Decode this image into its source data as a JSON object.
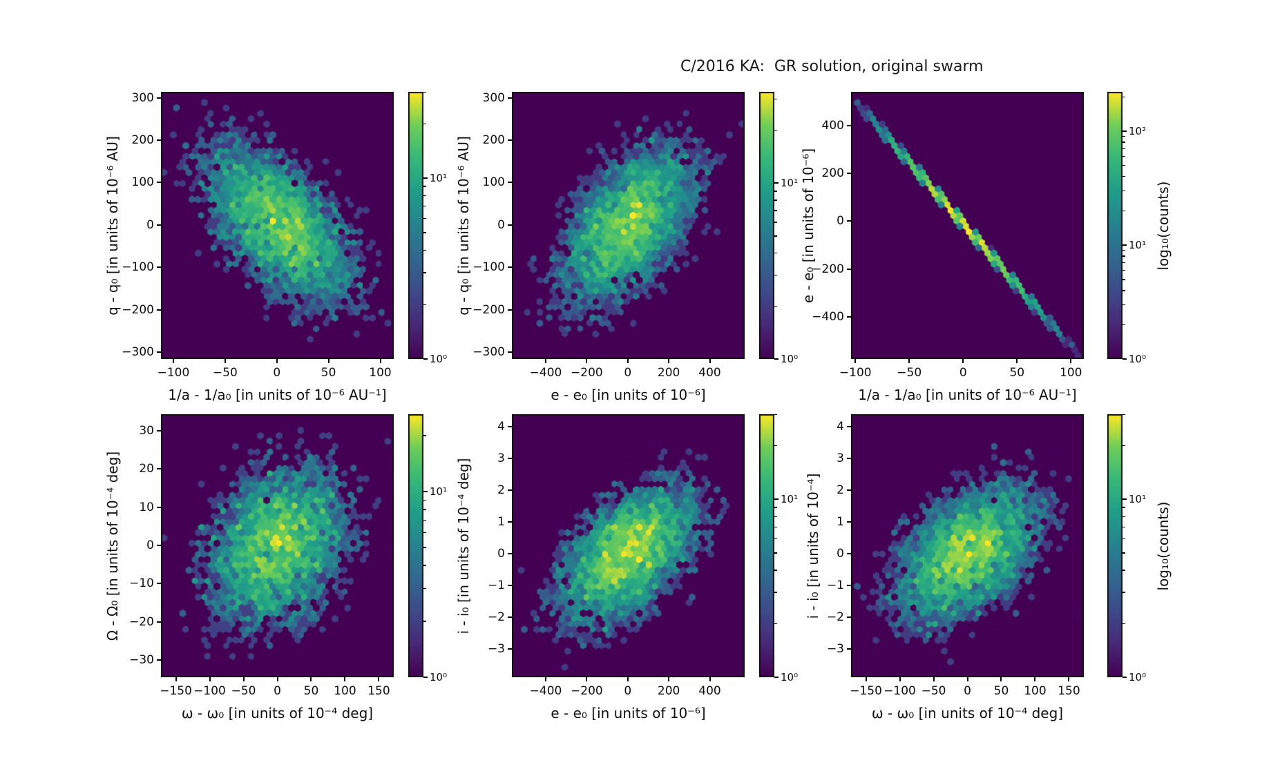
{
  "figure": {
    "title": "C/2016 KA:  GR solution, original swarm",
    "colormap": "viridis",
    "background_color": "#ffffff",
    "hex_zero_color": "#440154",
    "colorbar_label": "log₁₀(counts)"
  },
  "chart_data": {
    "type": "hexbin",
    "rows": 2,
    "cols": 3,
    "panels": [
      {
        "name": "q-vs-1a",
        "xlabel": "1/a - 1/a₀ [in units of 10⁻⁶ AU⁻¹]",
        "ylabel": "q - q₀ [in units of 10⁻⁶ AU]",
        "xlim": [
          -112,
          113
        ],
        "ylim": [
          -316,
          314
        ],
        "xticks": [
          -100,
          -50,
          0,
          50,
          100
        ],
        "yticks": [
          300,
          200,
          100,
          0,
          -100,
          -200,
          -300
        ],
        "colorbar_ticks": [
          {
            "value": 10,
            "label": "10¹"
          },
          {
            "value": 1,
            "label": "10⁰"
          }
        ],
        "distribution": {
          "kind": "gaussian",
          "n_points": 5000,
          "x_mean": 3,
          "y_mean": 0,
          "x_sigma": 38,
          "y_sigma": 100,
          "correlation": -0.56,
          "seed": 101
        }
      },
      {
        "name": "q-vs-e",
        "xlabel": "e - e₀ [in units of 10⁻⁶]",
        "ylabel": "q - q₀ [in units of 10⁻⁶ AU]",
        "xlim": [
          -565,
          570
        ],
        "ylim": [
          -316,
          314
        ],
        "xticks": [
          -400,
          -200,
          0,
          200,
          400
        ],
        "yticks": [
          300,
          200,
          100,
          0,
          -100,
          -200,
          -300
        ],
        "colorbar_ticks": [
          {
            "value": 10,
            "label": "10¹"
          },
          {
            "value": 1,
            "label": "10⁰"
          }
        ],
        "distribution": {
          "kind": "gaussian",
          "n_points": 5000,
          "x_mean": 0,
          "y_mean": 0,
          "x_sigma": 175,
          "y_sigma": 100,
          "correlation": 0.55,
          "seed": 202
        }
      },
      {
        "name": "e-vs-1a",
        "xlabel": "1/a - 1/a₀ [in units of 10⁻⁶ AU⁻¹]",
        "ylabel": "e - e₀ [in units of 10⁻⁶]",
        "xlim": [
          -104,
          112
        ],
        "ylim": [
          -575,
          540
        ],
        "xticks": [
          -100,
          -50,
          0,
          50,
          100
        ],
        "yticks": [
          400,
          200,
          0,
          -200,
          -400
        ],
        "colorbar_ticks": [
          {
            "value": 100,
            "label": "10²"
          },
          {
            "value": 10,
            "label": "10¹"
          },
          {
            "value": 1,
            "label": "10⁰"
          }
        ],
        "distribution": {
          "kind": "linear",
          "n_points": 5000,
          "x_mean": 0,
          "x_sigma": 36,
          "slope": -5.15,
          "intercept": -10,
          "noise_sigma": 6,
          "seed": 303
        }
      },
      {
        "name": "Omega-vs-omega",
        "xlabel": "ω - ω₀ [in units of 10⁻⁴ deg]",
        "ylabel": "Ω - Ω₀ [in units of 10⁻⁴ deg]",
        "xlim": [
          -172,
          172
        ],
        "ylim": [
          -34.5,
          34.3
        ],
        "xticks": [
          -150,
          -100,
          -50,
          0,
          50,
          100,
          150
        ],
        "yticks": [
          30,
          20,
          10,
          0,
          -10,
          -20,
          -30
        ],
        "colorbar_ticks": [
          {
            "value": 10,
            "label": "10¹"
          },
          {
            "value": 1,
            "label": "10⁰"
          }
        ],
        "distribution": {
          "kind": "gaussian",
          "n_points": 5000,
          "x_mean": 0,
          "y_mean": 0,
          "x_sigma": 56,
          "y_sigma": 11.3,
          "correlation": 0.28,
          "seed": 404
        }
      },
      {
        "name": "i-vs-e",
        "xlabel": "e - e₀ [in units of 10⁻⁶]",
        "ylabel": "i - i₀ [in units of 10⁻⁴ deg]",
        "xlim": [
          -565,
          570
        ],
        "ylim": [
          -3.9,
          4.4
        ],
        "xticks": [
          -400,
          -200,
          0,
          200,
          400
        ],
        "yticks": [
          4,
          3,
          2,
          1,
          0,
          -1,
          -2,
          -3
        ],
        "colorbar_ticks": [
          {
            "value": 10,
            "label": "10¹"
          },
          {
            "value": 1,
            "label": "10⁰"
          }
        ],
        "distribution": {
          "kind": "gaussian",
          "n_points": 5000,
          "x_mean": 0,
          "y_mean": 0,
          "x_sigma": 175,
          "y_sigma": 1.15,
          "correlation": 0.5,
          "seed": 505
        }
      },
      {
        "name": "i-vs-omega",
        "xlabel": "ω - ω₀ [in units of 10⁻⁴ deg]",
        "ylabel": "i - i₀ [in units of 10⁻⁴]",
        "xlim": [
          -172,
          172
        ],
        "ylim": [
          -3.9,
          4.4
        ],
        "xticks": [
          -150,
          -100,
          -50,
          0,
          50,
          100,
          150
        ],
        "yticks": [
          4,
          3,
          2,
          1,
          0,
          -1,
          -2,
          -3
        ],
        "colorbar_ticks": [
          {
            "value": 10,
            "label": "10¹"
          },
          {
            "value": 1,
            "label": "10⁰"
          }
        ],
        "distribution": {
          "kind": "gaussian",
          "n_points": 5000,
          "x_mean": 0,
          "y_mean": 0,
          "x_sigma": 56,
          "y_sigma": 1.15,
          "correlation": 0.45,
          "seed": 606
        }
      }
    ]
  }
}
